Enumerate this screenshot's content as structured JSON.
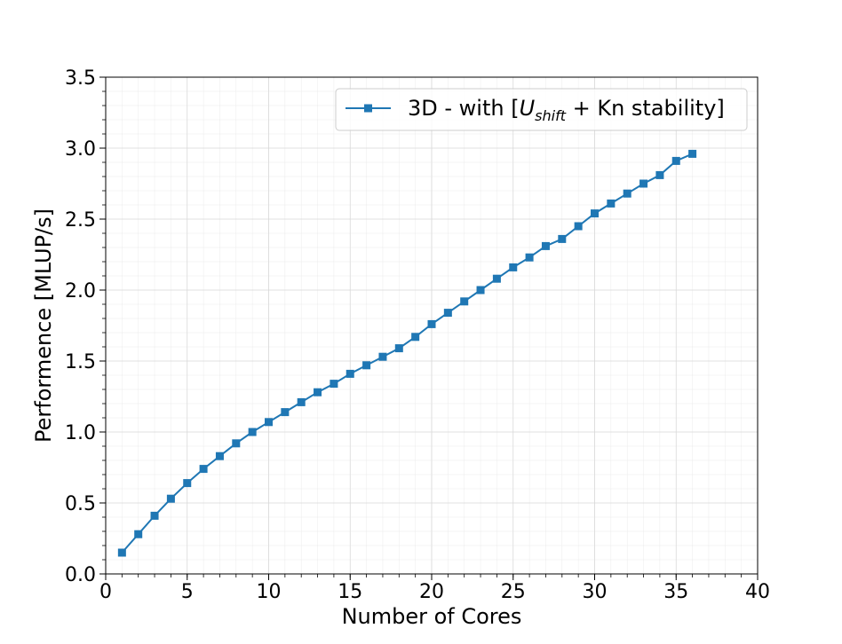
{
  "chart_data": {
    "type": "line",
    "title": "",
    "xlabel": "Number of Cores",
    "ylabel": "Performence [MLUP/s]",
    "xlim": [
      0,
      40
    ],
    "ylim": [
      0,
      3.5
    ],
    "xticks": [
      0,
      5,
      10,
      15,
      20,
      25,
      30,
      35,
      40
    ],
    "xtick_labels": [
      "0",
      "5",
      "10",
      "15",
      "20",
      "25",
      "30",
      "35",
      "40"
    ],
    "yticks": [
      0,
      0.5,
      1.0,
      1.5,
      2.0,
      2.5,
      3.0,
      3.5
    ],
    "ytick_labels": [
      "0.0",
      "0.5",
      "1.0",
      "1.5",
      "2.0",
      "2.5",
      "3.0",
      "3.5"
    ],
    "grid": true,
    "minor_grid": true,
    "legend_position": "upper right",
    "legend": {
      "prefix": "3D - with [",
      "u_symbol": "U",
      "u_subscript": "shift",
      "suffix": " + Kn stability]"
    },
    "series": [
      {
        "color": "#1f77b4",
        "marker": "square",
        "x": [
          1,
          2,
          3,
          4,
          5,
          6,
          7,
          8,
          9,
          10,
          11,
          12,
          13,
          14,
          15,
          16,
          17,
          18,
          19,
          20,
          21,
          22,
          23,
          24,
          25,
          26,
          27,
          28,
          29,
          30,
          31,
          32,
          33,
          34,
          35,
          36
        ],
        "y": [
          0.15,
          0.28,
          0.41,
          0.53,
          0.64,
          0.74,
          0.83,
          0.92,
          1.0,
          1.07,
          1.14,
          1.21,
          1.28,
          1.34,
          1.41,
          1.47,
          1.53,
          1.59,
          1.67,
          1.76,
          1.84,
          1.92,
          2.0,
          2.08,
          2.16,
          2.23,
          2.31,
          2.36,
          2.45,
          2.54,
          2.61,
          2.68,
          2.75,
          2.81,
          2.91,
          2.96
        ]
      }
    ]
  }
}
